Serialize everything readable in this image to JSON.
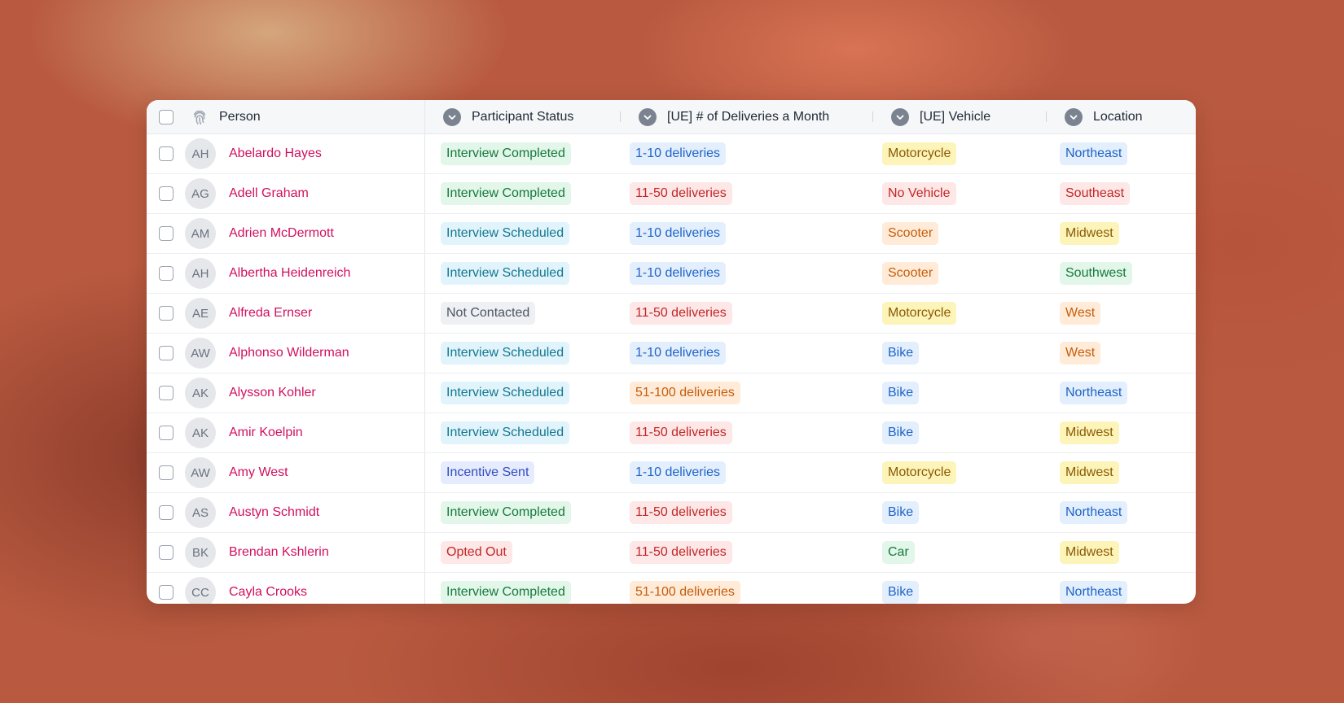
{
  "table": {
    "columns": [
      {
        "label": "Person",
        "icon": "fingerprint-icon"
      },
      {
        "label": "Participant Status",
        "icon": "chevron-down-icon"
      },
      {
        "label": "[UE] # of Deliveries a Month",
        "icon": "chevron-down-icon"
      },
      {
        "label": "[UE] Vehicle",
        "icon": "chevron-down-icon"
      },
      {
        "label": "Location",
        "icon": "chevron-down-icon"
      }
    ],
    "rows": [
      {
        "initials": "AH",
        "name": "Abelardo Hayes",
        "status": "Interview Completed",
        "deliveries": "1-10 deliveries",
        "vehicle": "Motorcycle",
        "location": "Northeast"
      },
      {
        "initials": "AG",
        "name": "Adell Graham",
        "status": "Interview Completed",
        "deliveries": "11-50 deliveries",
        "vehicle": "No Vehicle",
        "location": "Southeast"
      },
      {
        "initials": "AM",
        "name": "Adrien McDermott",
        "status": "Interview Scheduled",
        "deliveries": "1-10 deliveries",
        "vehicle": "Scooter",
        "location": "Midwest"
      },
      {
        "initials": "AH",
        "name": "Albertha Heidenreich",
        "status": "Interview Scheduled",
        "deliveries": "1-10 deliveries",
        "vehicle": "Scooter",
        "location": "Southwest"
      },
      {
        "initials": "AE",
        "name": "Alfreda Ernser",
        "status": "Not Contacted",
        "deliveries": "11-50 deliveries",
        "vehicle": "Motorcycle",
        "location": "West"
      },
      {
        "initials": "AW",
        "name": "Alphonso Wilderman",
        "status": "Interview Scheduled",
        "deliveries": "1-10 deliveries",
        "vehicle": "Bike",
        "location": "West"
      },
      {
        "initials": "AK",
        "name": "Alysson Kohler",
        "status": "Interview Scheduled",
        "deliveries": "51-100 deliveries",
        "vehicle": "Bike",
        "location": "Northeast"
      },
      {
        "initials": "AK",
        "name": "Amir Koelpin",
        "status": "Interview Scheduled",
        "deliveries": "11-50 deliveries",
        "vehicle": "Bike",
        "location": "Midwest"
      },
      {
        "initials": "AW",
        "name": "Amy West",
        "status": "Incentive Sent",
        "deliveries": "1-10 deliveries",
        "vehicle": "Motorcycle",
        "location": "Midwest"
      },
      {
        "initials": "AS",
        "name": "Austyn Schmidt",
        "status": "Interview Completed",
        "deliveries": "11-50 deliveries",
        "vehicle": "Bike",
        "location": "Northeast"
      },
      {
        "initials": "BK",
        "name": "Brendan Kshlerin",
        "status": "Opted Out",
        "deliveries": "11-50 deliveries",
        "vehicle": "Car",
        "location": "Midwest"
      },
      {
        "initials": "CC",
        "name": "Cayla Crooks",
        "status": "Interview Completed",
        "deliveries": "51-100 deliveries",
        "vehicle": "Bike",
        "location": "Northeast"
      }
    ]
  },
  "colors": {
    "person_name": "#d2105d",
    "tags": {
      "green": {
        "bg": "#e3f6ea",
        "fg": "#157a3c"
      },
      "cyan": {
        "bg": "#e1f4fb",
        "fg": "#13778f"
      },
      "blue": {
        "bg": "#e4effd",
        "fg": "#1d63c8"
      },
      "red": {
        "bg": "#fde7e7",
        "fg": "#c42626"
      },
      "orange": {
        "bg": "#ffebd7",
        "fg": "#c65d0b"
      },
      "yellow": {
        "bg": "#fcf4b8",
        "fg": "#8c5a05"
      },
      "gray": {
        "bg": "#eef0f3",
        "fg": "#4b5563"
      },
      "indigo": {
        "bg": "#e6ecfd",
        "fg": "#2f4dbf"
      }
    },
    "value_colors": {
      "Interview Completed": "green",
      "Interview Scheduled": "cyan",
      "Not Contacted": "gray",
      "Incentive Sent": "indigo",
      "Opted Out": "red",
      "1-10 deliveries": "blue",
      "11-50 deliveries": "red",
      "51-100 deliveries": "orange",
      "Motorcycle": "yellow",
      "No Vehicle": "red",
      "Scooter": "orange",
      "Bike": "blue",
      "Car": "green",
      "Northeast": "blue",
      "Southeast": "red",
      "Midwest": "yellow",
      "Southwest": "green",
      "West": "orange"
    }
  }
}
